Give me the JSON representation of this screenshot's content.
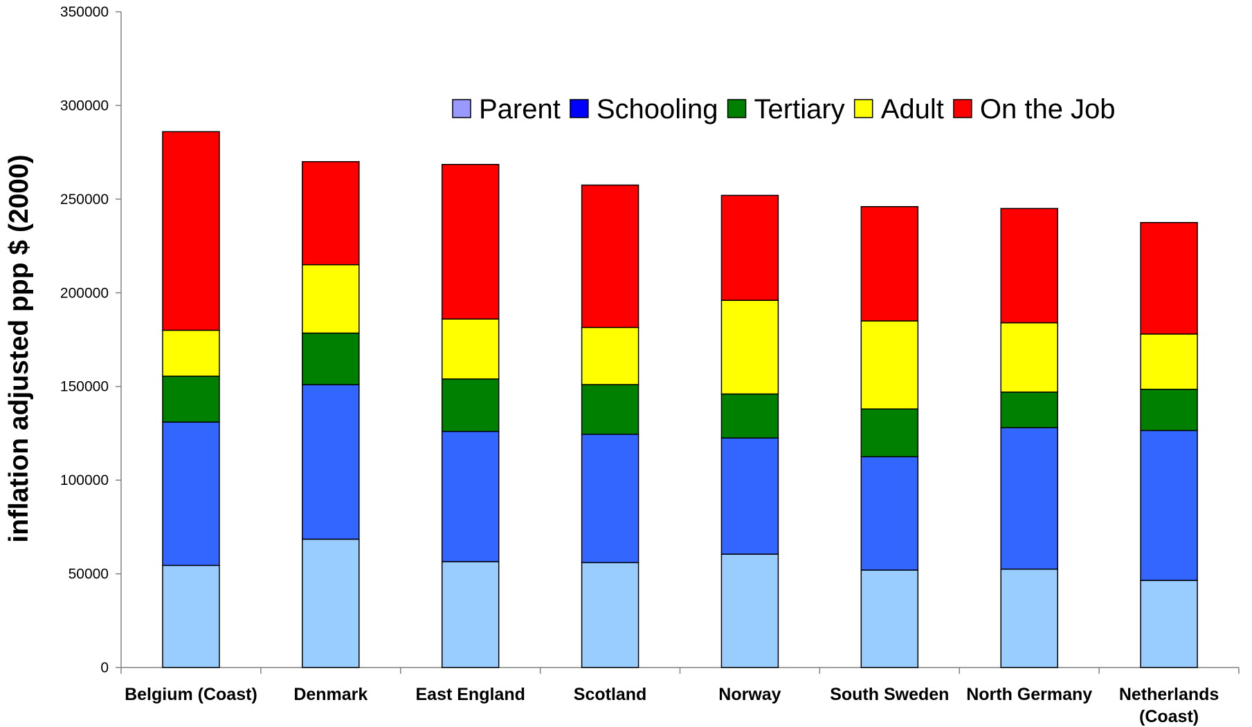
{
  "chart_data": {
    "type": "bar",
    "stacked": true,
    "title": "",
    "xlabel": "",
    "ylabel": "inflation adjusted ppp $ (2000)",
    "ylim": [
      0,
      350000
    ],
    "yticks": [
      0,
      50000,
      100000,
      150000,
      200000,
      250000,
      300000,
      350000
    ],
    "grid": false,
    "legend_position": "top-right",
    "categories": [
      [
        "Belgium (Coast)"
      ],
      [
        "Denmark"
      ],
      [
        "East England"
      ],
      [
        "Scotland"
      ],
      [
        "Norway"
      ],
      [
        "South Sweden"
      ],
      [
        "North Germany"
      ],
      [
        "Netherlands",
        "(Coast)"
      ]
    ],
    "series": [
      {
        "name": "Parent",
        "color": "#99ccff",
        "legend_color": "#9999ff",
        "values": [
          54500,
          68500,
          56500,
          56000,
          60500,
          52000,
          52500,
          46500
        ]
      },
      {
        "name": "Schooling",
        "color": "#3366ff",
        "legend_color": "#0000ff",
        "values": [
          76500,
          82500,
          69500,
          68500,
          62000,
          60500,
          75500,
          80000
        ]
      },
      {
        "name": "Tertiary",
        "color": "#008000",
        "legend_color": "#008000",
        "values": [
          24500,
          27500,
          28000,
          26500,
          23500,
          25500,
          19000,
          22000
        ]
      },
      {
        "name": "Adult",
        "color": "#ffff00",
        "legend_color": "#ffff00",
        "values": [
          24500,
          36500,
          32000,
          30500,
          50000,
          47000,
          37000,
          29500
        ]
      },
      {
        "name": "On the Job",
        "color": "#ff0000",
        "legend_color": "#ff0000",
        "values": [
          106000,
          55000,
          82500,
          76000,
          56000,
          61000,
          61000,
          59500
        ]
      }
    ]
  }
}
